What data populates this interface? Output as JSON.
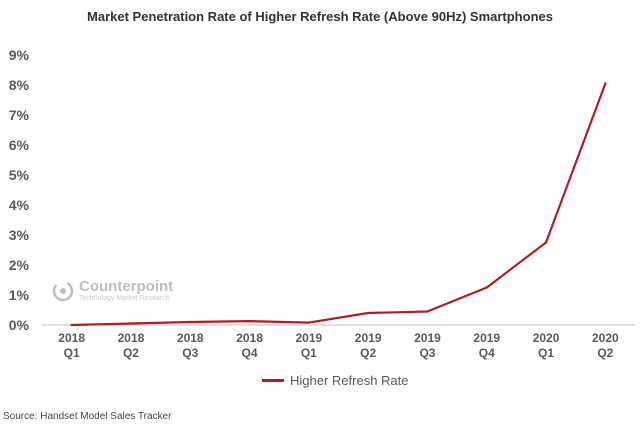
{
  "chart_data": {
    "type": "line",
    "title": "Market Penetration Rate of Higher Refresh Rate (Above 90Hz) Smartphones",
    "xlabel": "",
    "ylabel": "",
    "categories": [
      [
        "2018",
        "Q1"
      ],
      [
        "2018",
        "Q2"
      ],
      [
        "2018",
        "Q3"
      ],
      [
        "2018",
        "Q4"
      ],
      [
        "2019",
        "Q1"
      ],
      [
        "2019",
        "Q2"
      ],
      [
        "2019",
        "Q3"
      ],
      [
        "2019",
        "Q4"
      ],
      [
        "2020",
        "Q1"
      ],
      [
        "2020",
        "Q2"
      ]
    ],
    "series": [
      {
        "name": "Higher Refresh Rate",
        "color": "#b01e23",
        "values": [
          0.0,
          0.05,
          0.1,
          0.13,
          0.08,
          0.4,
          0.45,
          1.25,
          2.75,
          8.05
        ]
      }
    ],
    "ylim": [
      0,
      9
    ],
    "yticks": [
      0,
      1,
      2,
      3,
      4,
      5,
      6,
      7,
      8,
      9
    ],
    "ytick_format": "percent",
    "grid": false,
    "legend": "bottom"
  },
  "watermark": {
    "name": "Counterpoint",
    "tagline": "Technology Market Research"
  },
  "source": "Source: Handset Model Sales Tracker"
}
